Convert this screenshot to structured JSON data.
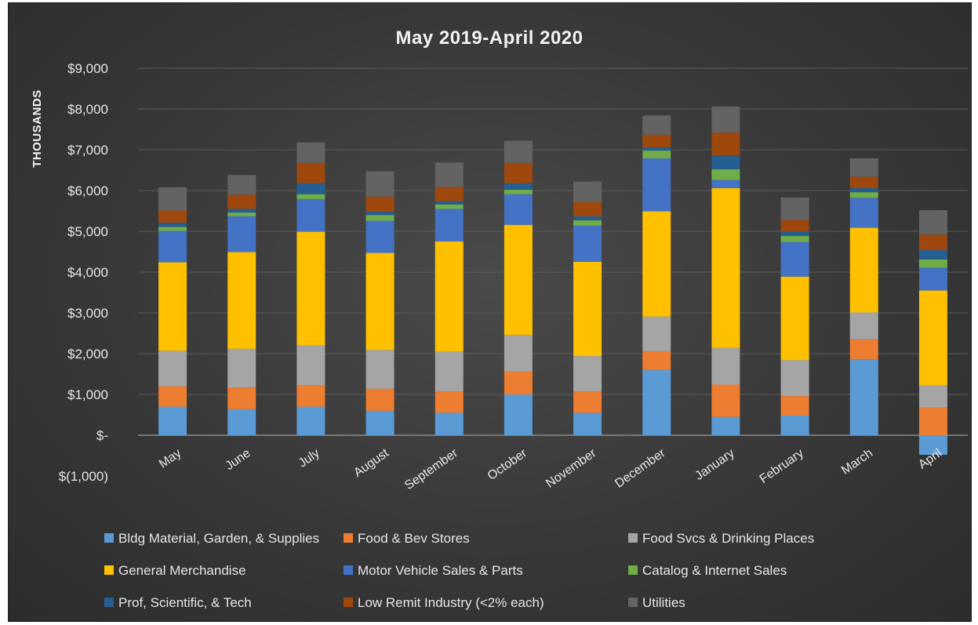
{
  "chart_data": {
    "type": "bar",
    "stacked": true,
    "title": "May 2019-April 2020",
    "ylabel": "THOUSANDS",
    "xlabel": "",
    "ylim": [
      -1000,
      9000
    ],
    "yticks": [
      {
        "value": 9000,
        "label": "$9,000"
      },
      {
        "value": 8000,
        "label": "$8,000"
      },
      {
        "value": 7000,
        "label": "$7,000"
      },
      {
        "value": 6000,
        "label": "$6,000"
      },
      {
        "value": 5000,
        "label": "$5,000"
      },
      {
        "value": 4000,
        "label": "$4,000"
      },
      {
        "value": 3000,
        "label": "$3,000"
      },
      {
        "value": 2000,
        "label": "$2,000"
      },
      {
        "value": 1000,
        "label": "$1,000"
      },
      {
        "value": 0,
        "label": "$-"
      },
      {
        "value": -1000,
        "label": "$(1,000)"
      }
    ],
    "grid": true,
    "legend_position": "bottom",
    "categories": [
      "May",
      "June",
      "July",
      "August",
      "September",
      "October",
      "November",
      "December",
      "January",
      "February",
      "March",
      "April"
    ],
    "series": [
      {
        "name": "Bldg Material, Garden, & Supplies",
        "color": "#5b9bd5",
        "values": [
          700,
          640,
          700,
          600,
          550,
          1000,
          550,
          1600,
          450,
          480,
          1860,
          -480
        ]
      },
      {
        "name": "Food & Bev Stores",
        "color": "#ed7d31",
        "values": [
          500,
          530,
          530,
          540,
          520,
          560,
          520,
          460,
          790,
          480,
          490,
          680
        ]
      },
      {
        "name": "Food Svcs & Drinking Places",
        "color": "#a5a5a5",
        "values": [
          870,
          950,
          980,
          950,
          980,
          900,
          870,
          850,
          900,
          880,
          660,
          550
        ]
      },
      {
        "name": "General Merchandise",
        "color": "#ffc000",
        "values": [
          2170,
          2370,
          2780,
          2380,
          2700,
          2700,
          2310,
          2580,
          3920,
          2050,
          2080,
          2320
        ]
      },
      {
        "name": "Motor Vehicle Sales & Parts",
        "color": "#4472c4",
        "values": [
          770,
          880,
          800,
          790,
          800,
          750,
          890,
          1300,
          200,
          850,
          730,
          560
        ]
      },
      {
        "name": "Catalog & Internet Sales",
        "color": "#70ad47",
        "values": [
          100,
          90,
          120,
          140,
          110,
          110,
          130,
          190,
          260,
          150,
          140,
          200
        ]
      },
      {
        "name": "Prof, Scientific, & Tech",
        "color": "#255e91",
        "values": [
          100,
          90,
          270,
          80,
          80,
          160,
          100,
          80,
          340,
          110,
          100,
          230
        ]
      },
      {
        "name": "Low Remit Industry (<2% each)",
        "color": "#9e480e",
        "values": [
          300,
          350,
          500,
          370,
          350,
          500,
          350,
          310,
          560,
          280,
          280,
          380
        ]
      },
      {
        "name": "Utilities",
        "color": "#636363",
        "values": [
          570,
          480,
          500,
          620,
          600,
          540,
          500,
          470,
          640,
          550,
          450,
          600
        ]
      }
    ],
    "legend_columns": [
      [
        "Bldg Material, Garden, & Supplies",
        "General Merchandise",
        "Prof, Scientific, & Tech"
      ],
      [
        "Food & Bev Stores",
        "Motor Vehicle Sales & Parts",
        "Low Remit Industry (<2% each)"
      ],
      [
        "Food Svcs & Drinking Places",
        "Catalog & Internet Sales",
        "Utilities"
      ]
    ]
  }
}
